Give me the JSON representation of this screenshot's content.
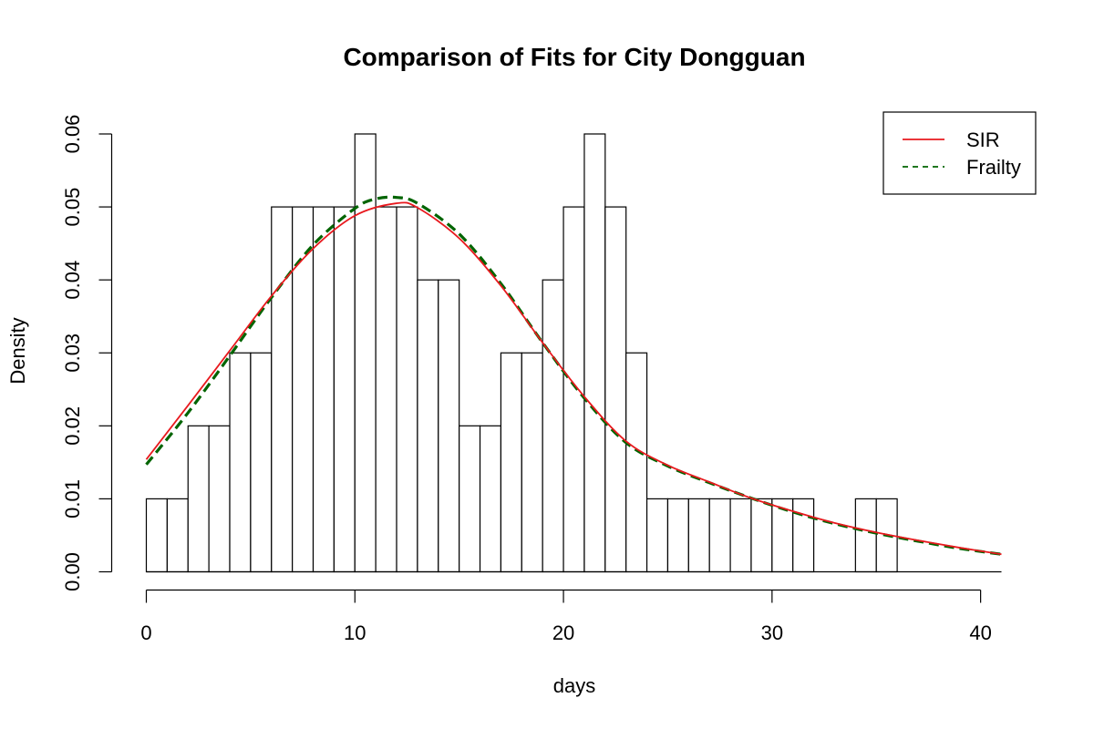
{
  "chart_data": {
    "type": "histogram",
    "title": "Comparison of Fits for City Dongguan",
    "xlabel": "days",
    "ylabel": "Density",
    "xlim": [
      0,
      41
    ],
    "ylim": [
      0,
      0.06
    ],
    "x_ticks": [
      0,
      10,
      20,
      30,
      40
    ],
    "y_ticks": [
      0.0,
      0.01,
      0.02,
      0.03,
      0.04,
      0.05,
      0.06
    ],
    "y_tick_labels": [
      "0.00",
      "0.01",
      "0.02",
      "0.03",
      "0.04",
      "0.05",
      "0.06"
    ],
    "bin_width": 1,
    "bins": [
      {
        "x0": 0,
        "x1": 1,
        "density": 0.01
      },
      {
        "x0": 1,
        "x1": 2,
        "density": 0.01
      },
      {
        "x0": 2,
        "x1": 3,
        "density": 0.02
      },
      {
        "x0": 3,
        "x1": 4,
        "density": 0.02
      },
      {
        "x0": 4,
        "x1": 5,
        "density": 0.03
      },
      {
        "x0": 5,
        "x1": 6,
        "density": 0.03
      },
      {
        "x0": 6,
        "x1": 7,
        "density": 0.05
      },
      {
        "x0": 7,
        "x1": 8,
        "density": 0.05
      },
      {
        "x0": 8,
        "x1": 9,
        "density": 0.05
      },
      {
        "x0": 9,
        "x1": 10,
        "density": 0.05
      },
      {
        "x0": 10,
        "x1": 11,
        "density": 0.06
      },
      {
        "x0": 11,
        "x1": 12,
        "density": 0.05
      },
      {
        "x0": 12,
        "x1": 13,
        "density": 0.05
      },
      {
        "x0": 13,
        "x1": 14,
        "density": 0.04
      },
      {
        "x0": 14,
        "x1": 15,
        "density": 0.04
      },
      {
        "x0": 15,
        "x1": 16,
        "density": 0.02
      },
      {
        "x0": 16,
        "x1": 17,
        "density": 0.02
      },
      {
        "x0": 17,
        "x1": 18,
        "density": 0.03
      },
      {
        "x0": 18,
        "x1": 19,
        "density": 0.03
      },
      {
        "x0": 19,
        "x1": 20,
        "density": 0.04
      },
      {
        "x0": 20,
        "x1": 21,
        "density": 0.05
      },
      {
        "x0": 21,
        "x1": 22,
        "density": 0.06
      },
      {
        "x0": 22,
        "x1": 23,
        "density": 0.05
      },
      {
        "x0": 23,
        "x1": 24,
        "density": 0.03
      },
      {
        "x0": 24,
        "x1": 25,
        "density": 0.01
      },
      {
        "x0": 25,
        "x1": 26,
        "density": 0.01
      },
      {
        "x0": 26,
        "x1": 27,
        "density": 0.01
      },
      {
        "x0": 27,
        "x1": 28,
        "density": 0.01
      },
      {
        "x0": 28,
        "x1": 29,
        "density": 0.01
      },
      {
        "x0": 29,
        "x1": 30,
        "density": 0.01
      },
      {
        "x0": 30,
        "x1": 31,
        "density": 0.01
      },
      {
        "x0": 31,
        "x1": 32,
        "density": 0.01
      },
      {
        "x0": 32,
        "x1": 33,
        "density": 0.0
      },
      {
        "x0": 33,
        "x1": 34,
        "density": 0.0
      },
      {
        "x0": 34,
        "x1": 35,
        "density": 0.01
      },
      {
        "x0": 35,
        "x1": 36,
        "density": 0.01
      }
    ],
    "series": [
      {
        "name": "SIR",
        "color": "#e8191e",
        "line_style": "solid",
        "x": [
          0,
          2,
          4,
          6,
          8,
          10,
          12,
          13,
          15,
          17,
          19,
          21,
          23,
          25,
          27,
          29,
          31,
          33,
          35,
          37,
          39,
          41
        ],
        "y": [
          0.0154,
          0.0228,
          0.0303,
          0.0378,
          0.0443,
          0.0488,
          0.0505,
          0.0499,
          0.0457,
          0.0392,
          0.0314,
          0.024,
          0.0179,
          0.0146,
          0.0123,
          0.0101,
          0.0083,
          0.0067,
          0.0054,
          0.0043,
          0.0033,
          0.0024
        ]
      },
      {
        "name": "Frailty",
        "color": "#006400",
        "line_style": "dashed",
        "x": [
          0,
          2,
          4,
          6,
          8,
          10,
          11,
          12,
          13,
          15,
          17,
          19,
          21,
          23,
          25,
          27,
          29,
          31,
          33,
          35,
          37,
          39,
          41
        ],
        "y": [
          0.0147,
          0.0218,
          0.0296,
          0.0376,
          0.0448,
          0.0498,
          0.0511,
          0.0513,
          0.0505,
          0.0463,
          0.0395,
          0.0314,
          0.0238,
          0.0177,
          0.0145,
          0.0122,
          0.0101,
          0.0082,
          0.0066,
          0.0053,
          0.0042,
          0.0032,
          0.0024
        ]
      }
    ],
    "legend": {
      "position": "top-right",
      "entries": [
        "SIR",
        "Frailty"
      ]
    },
    "grid": false,
    "bar_fill": "#ffffff",
    "bar_stroke": "#000000"
  }
}
